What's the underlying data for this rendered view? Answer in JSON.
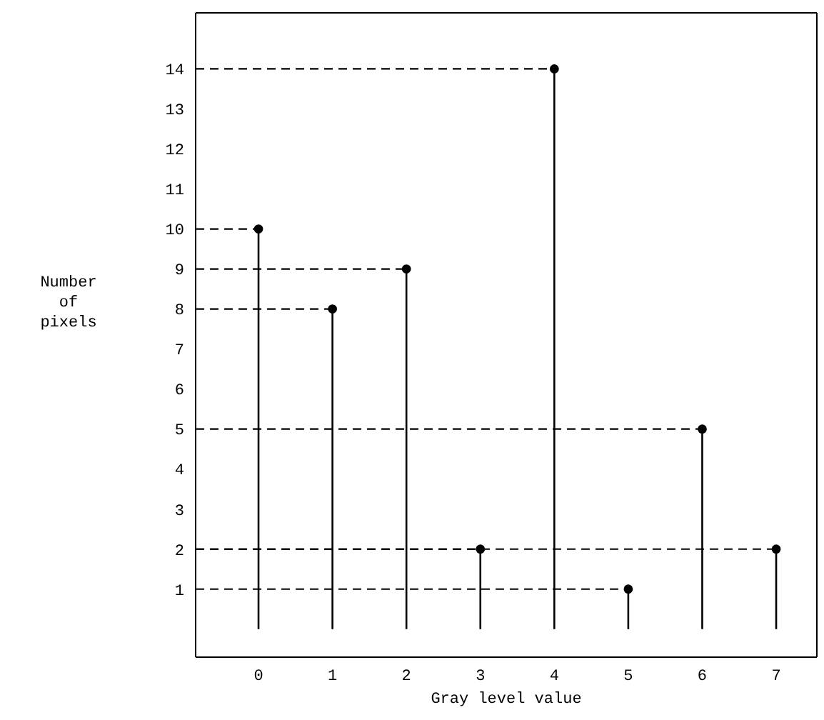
{
  "chart_data": {
    "type": "lollipop",
    "xlabel": "Gray level value",
    "ylabel": "Number of pixels",
    "series": [
      {
        "x": [
          0,
          1,
          2,
          3,
          4,
          5,
          6,
          7
        ],
        "values": [
          10,
          8,
          9,
          2,
          14,
          1,
          5,
          2
        ],
        "color": "#000000",
        "marker": "circle"
      },
      {
        "type": "line",
        "x": [
          -0.85,
          0
        ],
        "values": [
          10,
          10
        ],
        "color": "#000000",
        "line_style": "dashed",
        "marker": "none"
      },
      {
        "type": "line",
        "x": [
          -0.85,
          1
        ],
        "values": [
          8,
          8
        ],
        "color": "#000000",
        "line_style": "dashed",
        "marker": "none"
      },
      {
        "type": "line",
        "x": [
          -0.85,
          2
        ],
        "values": [
          9,
          9
        ],
        "color": "#000000",
        "line_style": "dashed",
        "marker": "none"
      },
      {
        "type": "line",
        "x": [
          -0.85,
          3
        ],
        "values": [
          2,
          2
        ],
        "color": "#000000",
        "line_style": "dashed",
        "marker": "none"
      },
      {
        "type": "line",
        "x": [
          -0.85,
          4
        ],
        "values": [
          14,
          14
        ],
        "color": "#000000",
        "line_style": "dashed",
        "marker": "none"
      },
      {
        "type": "line",
        "x": [
          -0.85,
          5
        ],
        "values": [
          1,
          1
        ],
        "color": "#000000",
        "line_style": "dashed",
        "marker": "none"
      },
      {
        "type": "line",
        "x": [
          -0.85,
          6
        ],
        "values": [
          5,
          5
        ],
        "color": "#000000",
        "line_style": "dashed",
        "marker": "none"
      },
      {
        "type": "line",
        "x": [
          -0.85,
          7
        ],
        "values": [
          2,
          2
        ],
        "color": "#000000",
        "line_style": "dashed",
        "marker": "none"
      }
    ],
    "xlim": [
      -0.85,
      7.55
    ],
    "xticks": [
      0,
      1,
      2,
      3,
      4,
      5,
      6,
      7
    ],
    "ylim": [
      -0.7,
      15.4
    ],
    "yticks": [
      1,
      2,
      3,
      4,
      5,
      6,
      7,
      8,
      9,
      10,
      11,
      12,
      13,
      14
    ],
    "grid": false
  }
}
